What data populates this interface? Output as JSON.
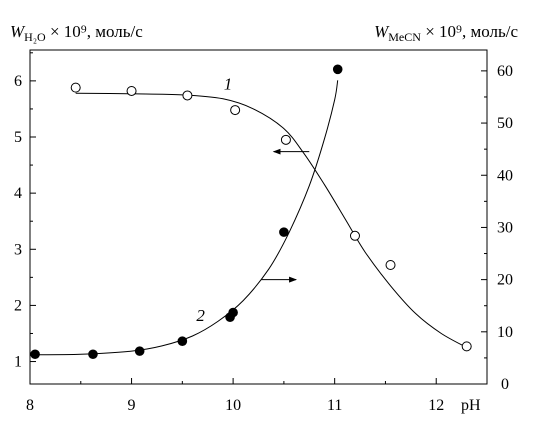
{
  "chart_data": {
    "type": "scatter",
    "title": "",
    "x": {
      "label": "pH",
      "range": [
        8,
        12.5
      ],
      "ticks": [
        8,
        9,
        10,
        11,
        12
      ],
      "tick_labels": [
        "8",
        "9",
        "10",
        "11",
        "12"
      ]
    },
    "y_left": {
      "label_main": "W",
      "label_sub": "H₂O",
      "label_rest": " × 10⁹, моль/с",
      "range": [
        0.6,
        6.55
      ],
      "ticks": [
        1,
        2,
        3,
        4,
        5,
        6
      ],
      "tick_labels": [
        "1",
        "2",
        "3",
        "4",
        "5",
        "6"
      ]
    },
    "y_right": {
      "label_main": "W",
      "label_sub": "MeCN",
      "label_rest": " × 10⁹, моль/с",
      "range": [
        0,
        64
      ],
      "ticks": [
        0,
        10,
        20,
        30,
        40,
        50,
        60
      ],
      "tick_labels": [
        "0",
        "10",
        "20",
        "30",
        "40",
        "50",
        "60"
      ]
    },
    "grid": false,
    "series": [
      {
        "name": "1",
        "marker": "open-circle",
        "axis": "left",
        "points": [
          [
            8.45,
            5.88
          ],
          [
            9.0,
            5.82
          ],
          [
            9.55,
            5.74
          ],
          [
            10.02,
            5.48
          ],
          [
            10.52,
            4.95
          ],
          [
            11.2,
            3.24
          ],
          [
            11.55,
            2.72
          ],
          [
            12.3,
            1.27
          ]
        ],
        "fit_curve": [
          [
            8.45,
            5.78
          ],
          [
            9.0,
            5.77
          ],
          [
            9.5,
            5.75
          ],
          [
            9.9,
            5.68
          ],
          [
            10.2,
            5.5
          ],
          [
            10.5,
            5.15
          ],
          [
            10.7,
            4.7
          ],
          [
            10.9,
            4.15
          ],
          [
            11.1,
            3.55
          ],
          [
            11.3,
            2.95
          ],
          [
            11.55,
            2.35
          ],
          [
            11.8,
            1.85
          ],
          [
            12.05,
            1.5
          ],
          [
            12.3,
            1.25
          ]
        ]
      },
      {
        "name": "2",
        "marker": "filled-circle",
        "axis": "right",
        "points": [
          [
            8.05,
            5.7
          ],
          [
            8.62,
            5.7
          ],
          [
            9.08,
            6.3
          ],
          [
            9.5,
            8.2
          ],
          [
            9.97,
            12.8
          ],
          [
            10.0,
            13.7
          ],
          [
            10.5,
            29.1
          ],
          [
            11.03,
            60.3
          ]
        ],
        "fit_curve": [
          [
            8.0,
            5.6
          ],
          [
            8.5,
            5.7
          ],
          [
            9.0,
            6.3
          ],
          [
            9.3,
            7.3
          ],
          [
            9.6,
            9.2
          ],
          [
            9.85,
            12.0
          ],
          [
            10.1,
            16.0
          ],
          [
            10.35,
            22.0
          ],
          [
            10.55,
            29.0
          ],
          [
            10.75,
            38.0
          ],
          [
            10.9,
            47.0
          ],
          [
            11.0,
            54.5
          ],
          [
            11.03,
            58.2
          ]
        ]
      }
    ],
    "annotations": [
      {
        "text": "1",
        "x": 9.95,
        "y_left": 5.85
      },
      {
        "text": "2",
        "x": 9.68,
        "y_left": 1.72
      }
    ],
    "arrows": [
      {
        "from": [
          10.75,
          4.74
        ],
        "to": [
          10.4,
          4.74
        ],
        "axis": "left",
        "direction": "left"
      },
      {
        "from": [
          10.28,
          20.0
        ],
        "to": [
          10.62,
          20.0
        ],
        "axis": "right",
        "direction": "right"
      }
    ]
  }
}
